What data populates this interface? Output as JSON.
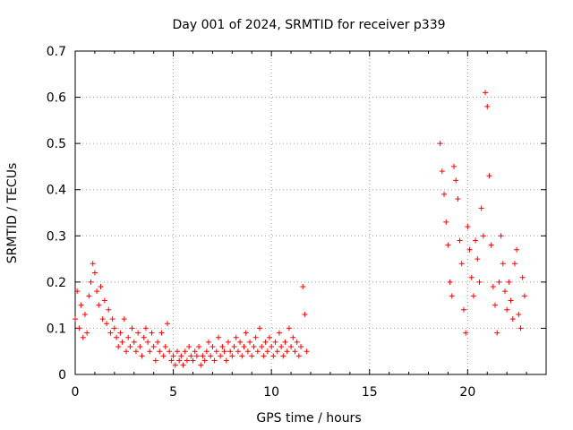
{
  "chart_data": {
    "type": "scatter",
    "title": "Day 001 of 2024, SRMTID for receiver p339",
    "xlabel": "GPS time / hours",
    "ylabel": "SRMTID / TECUs",
    "xlim": [
      0,
      24
    ],
    "ylim": [
      0,
      0.7
    ],
    "x_ticks": [
      0,
      5,
      10,
      15,
      20
    ],
    "x_tick_labels": [
      "0",
      "5",
      "10",
      "15",
      "20"
    ],
    "y_ticks": [
      0,
      0.1,
      0.2,
      0.3,
      0.4,
      0.5,
      0.6,
      0.7
    ],
    "y_tick_labels": [
      "0",
      "0.1",
      "0.2",
      "0.3",
      "0.4",
      "0.5",
      "0.6",
      "0.7"
    ],
    "grid": true,
    "marker": "+",
    "marker_color": "#ff0000",
    "series": [
      {
        "name": "p339",
        "points": [
          [
            0.0,
            0.12
          ],
          [
            0.1,
            0.18
          ],
          [
            0.2,
            0.1
          ],
          [
            0.3,
            0.15
          ],
          [
            0.4,
            0.08
          ],
          [
            0.5,
            0.13
          ],
          [
            0.6,
            0.09
          ],
          [
            0.7,
            0.17
          ],
          [
            0.8,
            0.2
          ],
          [
            0.9,
            0.24
          ],
          [
            1.0,
            0.22
          ],
          [
            1.1,
            0.18
          ],
          [
            1.2,
            0.15
          ],
          [
            1.3,
            0.19
          ],
          [
            1.4,
            0.12
          ],
          [
            1.5,
            0.16
          ],
          [
            1.6,
            0.11
          ],
          [
            1.7,
            0.14
          ],
          [
            1.8,
            0.09
          ],
          [
            1.9,
            0.12
          ],
          [
            2.0,
            0.1
          ],
          [
            2.1,
            0.08
          ],
          [
            2.2,
            0.06
          ],
          [
            2.3,
            0.09
          ],
          [
            2.4,
            0.07
          ],
          [
            2.5,
            0.12
          ],
          [
            2.6,
            0.05
          ],
          [
            2.7,
            0.08
          ],
          [
            2.8,
            0.06
          ],
          [
            2.9,
            0.1
          ],
          [
            3.0,
            0.07
          ],
          [
            3.1,
            0.05
          ],
          [
            3.2,
            0.09
          ],
          [
            3.3,
            0.06
          ],
          [
            3.4,
            0.04
          ],
          [
            3.5,
            0.08
          ],
          [
            3.6,
            0.1
          ],
          [
            3.7,
            0.07
          ],
          [
            3.8,
            0.05
          ],
          [
            3.9,
            0.09
          ],
          [
            4.0,
            0.06
          ],
          [
            4.1,
            0.03
          ],
          [
            4.2,
            0.07
          ],
          [
            4.3,
            0.05
          ],
          [
            4.4,
            0.09
          ],
          [
            4.5,
            0.04
          ],
          [
            4.6,
            0.06
          ],
          [
            4.7,
            0.11
          ],
          [
            4.8,
            0.05
          ],
          [
            4.9,
            0.03
          ],
          [
            5.0,
            0.04
          ],
          [
            5.1,
            0.02
          ],
          [
            5.2,
            0.05
          ],
          [
            5.3,
            0.03
          ],
          [
            5.4,
            0.04
          ],
          [
            5.5,
            0.02
          ],
          [
            5.6,
            0.05
          ],
          [
            5.7,
            0.03
          ],
          [
            5.8,
            0.06
          ],
          [
            5.9,
            0.04
          ],
          [
            6.0,
            0.03
          ],
          [
            6.1,
            0.05
          ],
          [
            6.2,
            0.04
          ],
          [
            6.3,
            0.06
          ],
          [
            6.4,
            0.02
          ],
          [
            6.5,
            0.04
          ],
          [
            6.6,
            0.03
          ],
          [
            6.7,
            0.05
          ],
          [
            6.8,
            0.07
          ],
          [
            6.9,
            0.04
          ],
          [
            7.0,
            0.06
          ],
          [
            7.1,
            0.03
          ],
          [
            7.2,
            0.05
          ],
          [
            7.3,
            0.08
          ],
          [
            7.4,
            0.04
          ],
          [
            7.5,
            0.06
          ],
          [
            7.6,
            0.05
          ],
          [
            7.7,
            0.03
          ],
          [
            7.8,
            0.07
          ],
          [
            7.9,
            0.05
          ],
          [
            8.0,
            0.04
          ],
          [
            8.1,
            0.06
          ],
          [
            8.2,
            0.08
          ],
          [
            8.3,
            0.05
          ],
          [
            8.4,
            0.07
          ],
          [
            8.5,
            0.04
          ],
          [
            8.6,
            0.06
          ],
          [
            8.7,
            0.09
          ],
          [
            8.8,
            0.05
          ],
          [
            8.9,
            0.07
          ],
          [
            9.0,
            0.04
          ],
          [
            9.1,
            0.06
          ],
          [
            9.2,
            0.08
          ],
          [
            9.3,
            0.05
          ],
          [
            9.4,
            0.1
          ],
          [
            9.5,
            0.06
          ],
          [
            9.6,
            0.04
          ],
          [
            9.7,
            0.07
          ],
          [
            9.8,
            0.05
          ],
          [
            9.9,
            0.08
          ],
          [
            10.0,
            0.06
          ],
          [
            10.1,
            0.04
          ],
          [
            10.2,
            0.07
          ],
          [
            10.3,
            0.05
          ],
          [
            10.4,
            0.09
          ],
          [
            10.5,
            0.06
          ],
          [
            10.6,
            0.04
          ],
          [
            10.7,
            0.07
          ],
          [
            10.8,
            0.05
          ],
          [
            10.9,
            0.1
          ],
          [
            11.0,
            0.06
          ],
          [
            11.1,
            0.08
          ],
          [
            11.2,
            0.05
          ],
          [
            11.3,
            0.07
          ],
          [
            11.4,
            0.04
          ],
          [
            11.5,
            0.06
          ],
          [
            11.6,
            0.19
          ],
          [
            11.7,
            0.13
          ],
          [
            11.8,
            0.05
          ],
          [
            18.6,
            0.5
          ],
          [
            18.7,
            0.44
          ],
          [
            18.8,
            0.39
          ],
          [
            18.9,
            0.33
          ],
          [
            19.0,
            0.28
          ],
          [
            19.1,
            0.2
          ],
          [
            19.2,
            0.17
          ],
          [
            19.3,
            0.45
          ],
          [
            19.4,
            0.42
          ],
          [
            19.5,
            0.38
          ],
          [
            19.6,
            0.29
          ],
          [
            19.7,
            0.24
          ],
          [
            19.8,
            0.14
          ],
          [
            19.9,
            0.09
          ],
          [
            20.0,
            0.32
          ],
          [
            20.1,
            0.27
          ],
          [
            20.2,
            0.21
          ],
          [
            20.3,
            0.17
          ],
          [
            20.4,
            0.29
          ],
          [
            20.5,
            0.25
          ],
          [
            20.6,
            0.2
          ],
          [
            20.7,
            0.36
          ],
          [
            20.8,
            0.3
          ],
          [
            20.9,
            0.61
          ],
          [
            21.0,
            0.58
          ],
          [
            21.1,
            0.43
          ],
          [
            21.2,
            0.28
          ],
          [
            21.3,
            0.19
          ],
          [
            21.4,
            0.15
          ],
          [
            21.5,
            0.09
          ],
          [
            21.6,
            0.2
          ],
          [
            21.7,
            0.3
          ],
          [
            21.8,
            0.24
          ],
          [
            21.9,
            0.18
          ],
          [
            22.0,
            0.14
          ],
          [
            22.1,
            0.2
          ],
          [
            22.2,
            0.16
          ],
          [
            22.3,
            0.12
          ],
          [
            22.4,
            0.24
          ],
          [
            22.5,
            0.27
          ],
          [
            22.6,
            0.13
          ],
          [
            22.7,
            0.1
          ],
          [
            22.8,
            0.21
          ],
          [
            22.9,
            0.17
          ]
        ]
      }
    ]
  }
}
